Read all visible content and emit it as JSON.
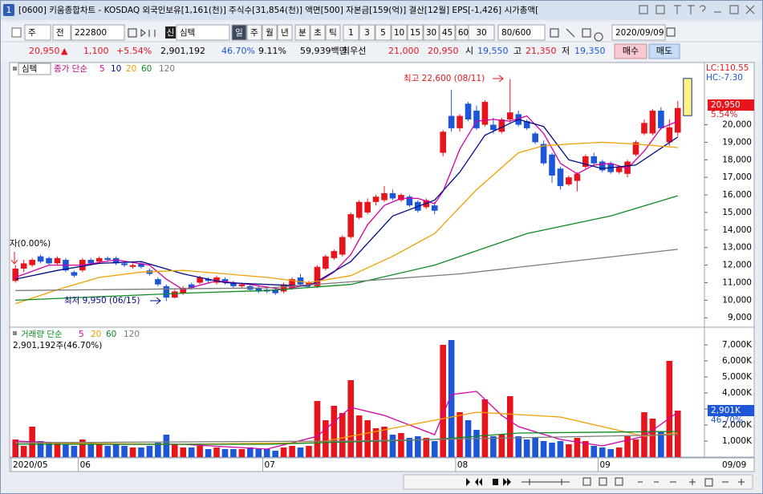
{
  "window": {
    "badge": "1",
    "title": "[0600] 키움종합차트 - KOSDAQ 외국인보유[1,161(천)] 주식수[31,854(천)] 액면[500] 자본금[159(억)] 결산[12월] EPS[-1,426] 시가총액["
  },
  "toolbar": {
    "mode": "주",
    "mode2": "전",
    "code": "222800",
    "name_badge": "신",
    "name": "심텍",
    "period_buttons": [
      "일",
      "주",
      "월",
      "년",
      "분",
      "초",
      "틱"
    ],
    "interval_buttons": [
      "1",
      "3",
      "5",
      "10",
      "15",
      "30",
      "45",
      "60"
    ],
    "interval_select": "30",
    "count": "80/600",
    "date": "2020/09/09"
  },
  "info": {
    "price": "20,950",
    "arrow": "▲",
    "change": "1,100",
    "rate": "+5.54%",
    "volume": "2,901,192",
    "volume_ratio": "46.70%",
    "turnover": "9.11%",
    "amount": "59,939백만",
    "best_label": "최우선",
    "ask": "21,000",
    "bid": "20,950",
    "open_label": "시",
    "open": "19,550",
    "high_label": "고",
    "high": "21,350",
    "low_label": "저",
    "low": "19,350",
    "buy": "매수",
    "sell": "매도"
  },
  "chart_data": {
    "type": "candlestick",
    "categories": [
      "2020/05",
      null,
      null,
      null,
      null,
      null,
      null,
      null,
      "06",
      null,
      null,
      null,
      null,
      null,
      null,
      null,
      null,
      null,
      null,
      null,
      null,
      null,
      null,
      null,
      null,
      null,
      null,
      null,
      null,
      null,
      "07",
      null,
      null,
      null,
      null,
      null,
      null,
      null,
      null,
      null,
      null,
      null,
      null,
      null,
      null,
      null,
      null,
      null,
      null,
      null,
      null,
      null,
      null,
      "08",
      null,
      null,
      null,
      null,
      null,
      null,
      null,
      null,
      null,
      null,
      null,
      null,
      null,
      null,
      null,
      null,
      "09",
      null,
      null,
      null,
      null,
      null,
      null
    ],
    "price": {
      "name": "심텍",
      "legend_prefix": "종가 단순",
      "up_color": "#e8141c",
      "down_color": "#1d56d6",
      "open": [
        11100,
        11800,
        12000,
        12500,
        12400,
        12100,
        12300,
        11600,
        11700,
        12300,
        12200,
        12400,
        12400,
        12100,
        11900,
        12100,
        11700,
        11200,
        10800,
        10150,
        10400,
        10900,
        11000,
        11200,
        11000,
        11200,
        11000,
        10800,
        10800,
        10700,
        10600,
        10600,
        10500,
        10700,
        11300,
        10900,
        10800,
        11800,
        12400,
        12600,
        13600,
        14700,
        15000,
        15600,
        15700,
        16100,
        15700,
        15900,
        15600,
        15300,
        15400,
        18400,
        20500,
        19800,
        21200,
        20800,
        20000,
        20000,
        19600,
        20300,
        20600,
        20200,
        19500,
        18900,
        18300,
        17500,
        16600,
        16800,
        17600,
        18200,
        17900,
        17800,
        17300,
        17200,
        18300,
        19500,
        19500,
        20800,
        19000,
        19550
      ],
      "high": [
        12000,
        12300,
        12400,
        12600,
        12500,
        12500,
        12400,
        11700,
        12400,
        12400,
        12500,
        12500,
        12500,
        12200,
        12100,
        12200,
        11800,
        11300,
        10900,
        10600,
        10800,
        11000,
        11400,
        11300,
        11400,
        11300,
        11100,
        11000,
        10900,
        10800,
        10700,
        10700,
        11000,
        11300,
        11500,
        11100,
        12000,
        12600,
        12900,
        13700,
        15000,
        15700,
        15800,
        16000,
        16500,
        16300,
        16100,
        16000,
        15700,
        15800,
        15600,
        19700,
        22000,
        20600,
        21300,
        21100,
        21400,
        20400,
        20400,
        22600,
        20800,
        20300,
        19600,
        19100,
        18400,
        17600,
        17100,
        17300,
        18300,
        18400,
        18000,
        17900,
        17700,
        18000,
        19100,
        20300,
        20900,
        21000,
        20300,
        21350
      ],
      "low": [
        11000,
        11600,
        11900,
        12100,
        12000,
        12000,
        11600,
        11300,
        11600,
        12000,
        12100,
        12200,
        12000,
        11900,
        11800,
        11800,
        11400,
        10800,
        9950,
        10100,
        10300,
        10600,
        10900,
        11000,
        10900,
        10900,
        10700,
        10700,
        10500,
        10400,
        10400,
        10300,
        10400,
        10600,
        10800,
        10800,
        10700,
        11700,
        12300,
        12500,
        13500,
        14600,
        14900,
        15400,
        15600,
        15700,
        15600,
        15300,
        15000,
        15200,
        14900,
        18200,
        19600,
        19600,
        20200,
        19700,
        19900,
        19500,
        19500,
        20100,
        19900,
        19700,
        18900,
        17700,
        16700,
        16300,
        16500,
        16200,
        17500,
        17700,
        17300,
        17200,
        17200,
        17000,
        18200,
        19400,
        19400,
        19700,
        18800,
        19350
      ],
      "close": [
        11800,
        12100,
        12300,
        12200,
        12100,
        12400,
        11700,
        11400,
        12300,
        12100,
        12400,
        12300,
        12100,
        12000,
        12000,
        11900,
        11500,
        10900,
        10150,
        10500,
        10700,
        10700,
        11300,
        11100,
        11300,
        11000,
        10800,
        10900,
        10600,
        10500,
        10500,
        10400,
        10900,
        11200,
        10900,
        11000,
        11900,
        12500,
        12800,
        13600,
        14900,
        15600,
        15600,
        15900,
        16100,
        15800,
        16000,
        15400,
        15100,
        15700,
        15100,
        19600,
        19800,
        20500,
        20300,
        19800,
        21300,
        19700,
        20300,
        20700,
        20000,
        19800,
        19000,
        17800,
        17100,
        16500,
        17000,
        17200,
        18200,
        17800,
        17400,
        17300,
        17600,
        17900,
        19000,
        20100,
        20800,
        19800,
        19850,
        20950
      ],
      "ma": [
        {
          "name": "5",
          "color": "#d400a6",
          "x": [
            0,
            4,
            8,
            12,
            16,
            18,
            20,
            24,
            28,
            32,
            36,
            38,
            40,
            42,
            44,
            46,
            48,
            50,
            51,
            53,
            55,
            57,
            59,
            61,
            63,
            65,
            67,
            69,
            71,
            73,
            75,
            77,
            79
          ],
          "values": [
            11300,
            12000,
            12000,
            12300,
            12000,
            11200,
            10600,
            11100,
            10900,
            10600,
            11000,
            11600,
            12600,
            14300,
            15400,
            15800,
            15800,
            15500,
            16200,
            18600,
            20200,
            20300,
            20200,
            20500,
            19500,
            17800,
            17200,
            17700,
            17800,
            17500,
            18500,
            19800,
            20200
          ]
        },
        {
          "name": "10",
          "color": "#000c8a",
          "x": [
            0,
            5,
            10,
            15,
            20,
            25,
            30,
            35,
            40,
            45,
            50,
            53,
            56,
            60,
            63,
            66,
            70,
            74,
            79
          ],
          "values": [
            11200,
            11700,
            12100,
            12200,
            11500,
            11000,
            10900,
            10800,
            12200,
            14800,
            15700,
            17300,
            19400,
            20300,
            19900,
            18000,
            17500,
            17700,
            19300
          ]
        },
        {
          "name": "20",
          "color": "#f0a000",
          "x": [
            0,
            5,
            10,
            15,
            20,
            25,
            30,
            35,
            40,
            45,
            50,
            55,
            60,
            63,
            66,
            70,
            74,
            79
          ],
          "values": [
            9800,
            10600,
            11300,
            11600,
            11700,
            11500,
            11300,
            11000,
            11400,
            12500,
            13800,
            16300,
            18400,
            18800,
            18900,
            19000,
            18900,
            18700
          ]
        },
        {
          "name": "60",
          "color": "#0a8a20",
          "x": [
            0,
            10,
            20,
            30,
            40,
            50,
            61,
            71,
            79
          ],
          "values": [
            10000,
            10200,
            10400,
            10550,
            10900,
            12000,
            13800,
            14800,
            15950
          ]
        },
        {
          "name": "120",
          "color": "#7a7a7a",
          "x": [
            0,
            30,
            53,
            79
          ],
          "values": [
            10550,
            10700,
            11500,
            12900
          ]
        }
      ]
    },
    "volume": {
      "axis": "y2",
      "legend_prefix": "거래량 단순",
      "values": [
        1100,
        700,
        1900,
        1000,
        900,
        900,
        800,
        700,
        1100,
        900,
        800,
        700,
        800,
        700,
        600,
        600,
        700,
        900,
        1400,
        800,
        600,
        600,
        700,
        500,
        600,
        500,
        500,
        500,
        600,
        500,
        500,
        400,
        600,
        700,
        600,
        700,
        3500,
        2300,
        3200,
        2750,
        4800,
        2600,
        2300,
        1800,
        1900,
        1400,
        1500,
        1200,
        1300,
        1200,
        1000,
        7000,
        7300,
        2800,
        2300,
        1700,
        3600,
        1300,
        1400,
        3800,
        1300,
        1100,
        1200,
        1000,
        900,
        1000,
        800,
        1200,
        1000,
        700,
        600,
        500,
        600,
        1300,
        1100,
        2800,
        2400,
        1600,
        6000,
        2901
      ],
      "ma": [
        {
          "name": "5",
          "color": "#d400a6",
          "x": [
            0,
            10,
            20,
            30,
            36,
            40,
            44,
            50,
            52,
            55,
            58,
            60,
            65,
            70,
            75,
            79
          ],
          "values": [
            1000,
            800,
            800,
            500,
            1300,
            3100,
            2600,
            1400,
            3900,
            4100,
            2600,
            1900,
            1100,
            700,
            1300,
            2800
          ]
        },
        {
          "name": "20",
          "color": "#f0a000",
          "x": [
            0,
            20,
            36,
            45,
            55,
            65,
            75,
            79
          ],
          "values": [
            900,
            800,
            900,
            1800,
            2800,
            2500,
            1300,
            1500
          ]
        },
        {
          "name": "60",
          "color": "#0a8a20",
          "x": [
            0,
            30,
            50,
            60,
            79
          ],
          "values": [
            800,
            800,
            1100,
            1500,
            1600
          ]
        },
        {
          "name": "120",
          "color": "#7a7a7a",
          "x": [
            0,
            40,
            79
          ],
          "values": [
            900,
            1000,
            1400
          ]
        }
      ]
    },
    "ylim": [
      8600,
      23450
    ],
    "yticks": [
      {
        "value": 9000,
        "label": "9,000"
      },
      {
        "value": 10000,
        "label": "10,000"
      },
      {
        "value": 11000,
        "label": "11,000"
      },
      {
        "value": 12000,
        "label": "12,000"
      },
      {
        "value": 13000,
        "label": "13,000"
      },
      {
        "value": 14000,
        "label": "14,000"
      },
      {
        "value": 15000,
        "label": "15,000"
      },
      {
        "value": 16000,
        "label": "16,000"
      },
      {
        "value": 17000,
        "label": "17,000"
      },
      {
        "value": 18000,
        "label": "18,000"
      },
      {
        "value": 19000,
        "label": "19,000"
      },
      {
        "value": 20000,
        "label": "20,000"
      }
    ],
    "y2lim": [
      0,
      8000
    ],
    "y2ticks": [
      {
        "value": 1000,
        "label": "1,000K"
      },
      {
        "value": 2000,
        "label": "2,000K"
      },
      {
        "value": 3000,
        "label": "3,000K"
      },
      {
        "value": 4000,
        "label": "4,000K"
      },
      {
        "value": 5000,
        "label": "5,000K"
      },
      {
        "value": 6000,
        "label": "6,000K"
      },
      {
        "value": 7000,
        "label": "7,000K"
      }
    ],
    "annotations": {
      "high": "최고 22,600 (08/11)",
      "low": "최저 9,950 (06/15)",
      "left": "자(0.00%)",
      "lc": "LC:110.55",
      "hc": "HC:-7.30",
      "last_price": "20,950",
      "last_rate": "5.54%",
      "volume_text": "2,901,192주(46.70%)",
      "last_volume": "2,901K",
      "last_volume_ratio": "46.70%",
      "cursor_date": "09/09"
    }
  }
}
